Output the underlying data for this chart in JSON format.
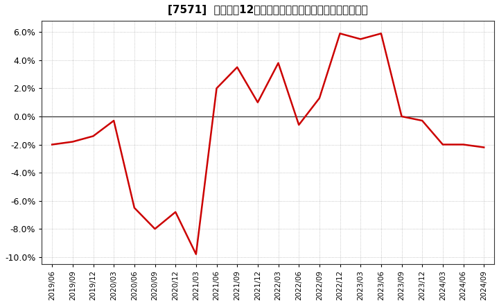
{
  "title": "[7571]  売上高の12か月移動合計の対前年同期増減率の推移",
  "line_color": "#cc0000",
  "background_color": "#ffffff",
  "plot_bg_color": "#ffffff",
  "grid_color": "#999999",
  "zero_line_color": "#333333",
  "ylim": [
    -0.105,
    0.068
  ],
  "yticks": [
    -0.1,
    -0.08,
    -0.06,
    -0.04,
    -0.02,
    0.0,
    0.02,
    0.04,
    0.06
  ],
  "dates": [
    "2019/06",
    "2019/09",
    "2019/12",
    "2020/03",
    "2020/06",
    "2020/09",
    "2020/12",
    "2021/03",
    "2021/06",
    "2021/09",
    "2021/12",
    "2022/03",
    "2022/06",
    "2022/09",
    "2022/12",
    "2023/03",
    "2023/06",
    "2023/09",
    "2023/12",
    "2024/03",
    "2024/06",
    "2024/09"
  ],
  "values": [
    -0.02,
    -0.018,
    -0.014,
    -0.003,
    -0.065,
    -0.08,
    -0.068,
    -0.098,
    0.02,
    0.035,
    0.01,
    0.038,
    -0.006,
    0.013,
    0.059,
    0.055,
    0.059,
    0.0,
    -0.003,
    -0.02,
    -0.02,
    -0.022
  ],
  "xtick_labels": [
    "2019/06",
    "2019/09",
    "2019/12",
    "2020/03",
    "2020/06",
    "2020/09",
    "2020/12",
    "2021/03",
    "2021/06",
    "2021/09",
    "2021/12",
    "2022/03",
    "2022/06",
    "2022/09",
    "2022/12",
    "2023/03",
    "2023/06",
    "2023/09",
    "2023/12",
    "2024/03",
    "2024/06",
    "2024/09"
  ],
  "title_fontsize": 11,
  "ytick_fontsize": 9,
  "xtick_fontsize": 7.5,
  "line_width": 1.8
}
